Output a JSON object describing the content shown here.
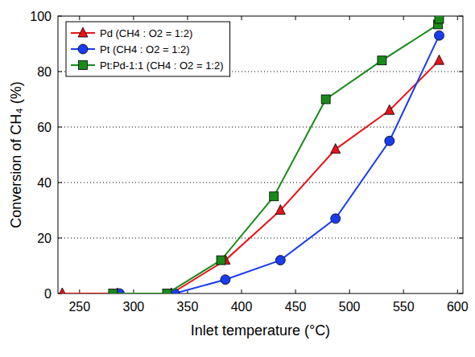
{
  "chart_data": {
    "type": "line",
    "x_label": "Inlet temperature (°C)",
    "y_label": "Conversion of CH₄ (%)",
    "xlim": [
      230,
      605
    ],
    "xticks": [
      250,
      300,
      350,
      400,
      450,
      500,
      550,
      600
    ],
    "ylim": [
      0,
      100
    ],
    "yticks": [
      0,
      20,
      40,
      60,
      80,
      100
    ],
    "grid": true,
    "legend": "upper left",
    "series": [
      {
        "name": "Pd (CH4 : O2 = 1:2)",
        "color": "#e8141a",
        "marker": "triangle",
        "x": [
          234,
          285,
          335,
          385,
          436,
          487,
          537,
          583
        ],
        "values": [
          0,
          0,
          0,
          12,
          30,
          52,
          66,
          84
        ]
      },
      {
        "name": "Pt (CH4 : O2 = 1:2)",
        "color": "#1a3cf0",
        "marker": "circle",
        "x": [
          287,
          338,
          385,
          436,
          487,
          537,
          583
        ],
        "values": [
          0,
          0,
          5,
          12,
          27,
          55,
          93
        ]
      },
      {
        "name": "Pt:Pd-1:1 (CH4 : O2 = 1:2)",
        "color": "#1a8a1a",
        "marker": "square",
        "x": [
          281,
          331,
          381,
          430,
          478,
          530,
          582,
          583
        ],
        "values": [
          0,
          0,
          12,
          35,
          70,
          84,
          97,
          99
        ]
      }
    ]
  }
}
